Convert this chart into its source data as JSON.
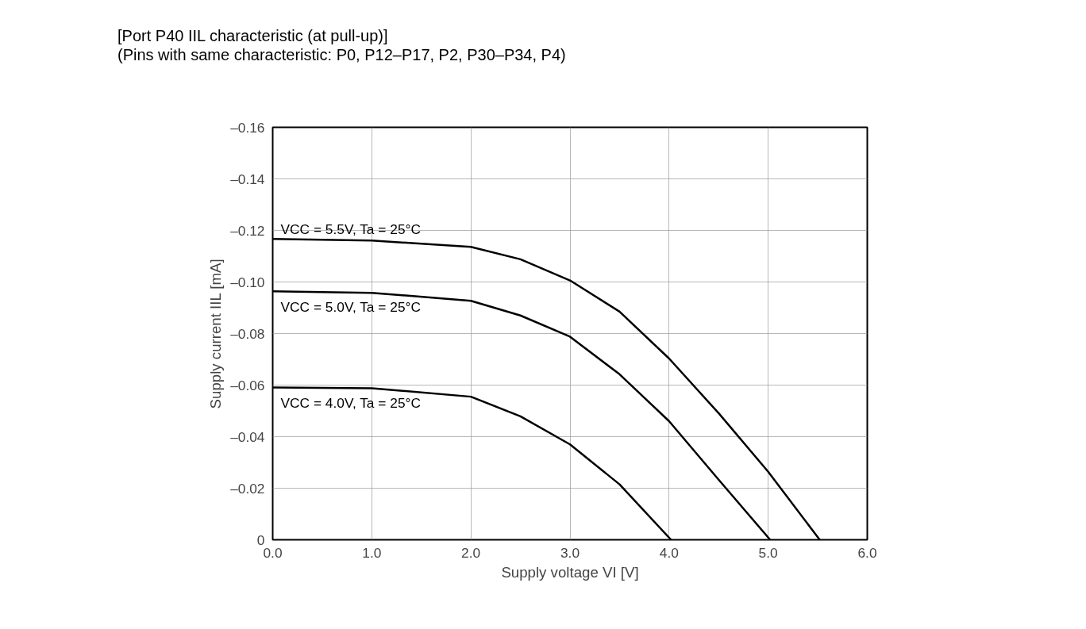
{
  "chart_data": {
    "type": "line",
    "title": "[Port P40 IIL characteristic (at pull-up)]",
    "subtitle": "(Pins with same characteristic: P0, P12–P17, P2, P30–P34, P4)",
    "xlabel": "Supply voltage VI [V]",
    "ylabel": "Supply current IIL [mA]",
    "xlim": [
      0,
      6
    ],
    "ylim": [
      0,
      -0.16
    ],
    "xticks": [
      {
        "value": 0,
        "label": "0.0"
      },
      {
        "value": 1,
        "label": "1.0"
      },
      {
        "value": 2,
        "label": "2.0"
      },
      {
        "value": 3,
        "label": "3.0"
      },
      {
        "value": 4,
        "label": "4.0"
      },
      {
        "value": 5,
        "label": "5.0"
      },
      {
        "value": 6,
        "label": "6.0"
      }
    ],
    "yticks": [
      0,
      {
        "value": -0.02,
        "label": "–0.02"
      },
      {
        "value": -0.04,
        "label": "–0.04"
      },
      {
        "value": -0.06,
        "label": "–0.06"
      },
      {
        "value": -0.08,
        "label": "–0.08"
      },
      {
        "value": -0.1,
        "label": "–0.10"
      },
      {
        "value": -0.12,
        "label": "–0.12"
      },
      {
        "value": -0.14,
        "label": "–0.14"
      },
      {
        "value": -0.16,
        "label": "–0.16"
      }
    ],
    "grid": true,
    "series": [
      {
        "name": "VCC = 5.5V, Ta = 25°C",
        "color": "#000000",
        "x": [
          0,
          1.0,
          2.0,
          2.5,
          3.0,
          3.5,
          4.0,
          4.5,
          5.0,
          5.52
        ],
        "values": [
          -0.1167,
          -0.1161,
          -0.1136,
          -0.1088,
          -0.1006,
          -0.0885,
          -0.0703,
          -0.0491,
          -0.0264,
          0
        ]
      },
      {
        "name": "VCC = 5.0V, Ta = 25°C",
        "color": "#000000",
        "x": [
          0,
          1.0,
          2.0,
          2.5,
          3.0,
          3.5,
          4.0,
          4.5,
          5.02
        ],
        "values": [
          -0.0964,
          -0.0958,
          -0.0927,
          -0.087,
          -0.0788,
          -0.0642,
          -0.046,
          -0.0233,
          0
        ]
      },
      {
        "name": "VCC = 4.0V, Ta = 25°C",
        "color": "#000000",
        "x": [
          0,
          1.0,
          2.0,
          2.5,
          3.0,
          3.5,
          4.02
        ],
        "values": [
          -0.0591,
          -0.0588,
          -0.0555,
          -0.0479,
          -0.037,
          -0.0215,
          0
        ]
      }
    ]
  }
}
